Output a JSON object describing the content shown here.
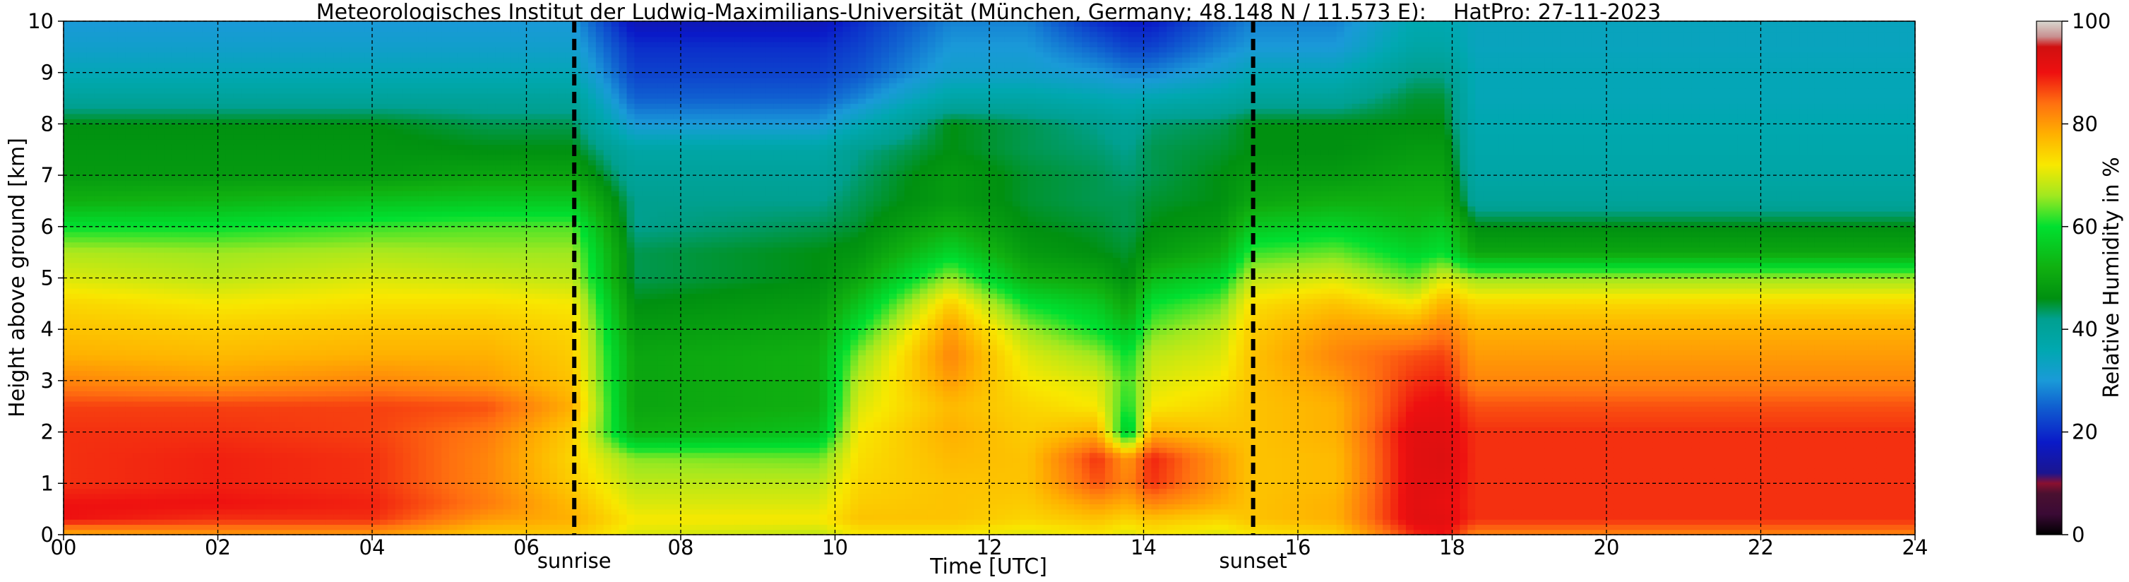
{
  "chart_data": {
    "type": "heatmap",
    "title": "Meteorologisches Institut der Ludwig-Maximilians-Universität (München, Germany; 48.148 N / 11.573 E):    HatPro: 27-11-2023",
    "xlabel": "Time [UTC]",
    "ylabel": "Height above ground [km]",
    "xlim": [
      0,
      24
    ],
    "ylim": [
      0,
      10
    ],
    "x_ticks": [
      "00",
      "02",
      "04",
      "06",
      "08",
      "10",
      "12",
      "14",
      "16",
      "18",
      "20",
      "22",
      "24"
    ],
    "y_ticks": [
      "0",
      "1",
      "2",
      "3",
      "4",
      "5",
      "6",
      "7",
      "8",
      "9",
      "10"
    ],
    "grid": true,
    "colorbar": {
      "label": "Relative Humidity in %",
      "range": [
        0,
        100
      ],
      "ticks": [
        "0",
        "20",
        "40",
        "60",
        "80",
        "100"
      ]
    },
    "annotations": [
      {
        "text": "sunrise",
        "x": 6.62
      },
      {
        "text": "sunset",
        "x": 15.42
      }
    ],
    "height_levels_km": [
      0.0,
      0.3,
      0.6,
      1.0,
      1.5,
      2.0,
      2.5,
      3.0,
      3.5,
      4.0,
      4.5,
      5.0,
      5.5,
      6.0,
      6.5,
      7.0,
      7.5,
      8.0,
      8.5,
      9.0,
      9.5,
      10.0
    ],
    "rh_profiles": [
      {
        "time": 0.0,
        "rh": [
          78,
          90,
          90,
          88,
          88,
          88,
          87,
          82,
          78,
          76,
          74,
          70,
          67,
          60,
          52,
          48,
          47,
          46,
          40,
          35,
          32,
          30
        ]
      },
      {
        "time": 2.0,
        "rh": [
          80,
          88,
          90,
          89,
          89,
          88,
          87,
          80,
          77,
          75,
          72,
          68,
          66,
          60,
          53,
          48,
          47,
          46,
          40,
          35,
          32,
          30
        ]
      },
      {
        "time": 4.0,
        "rh": [
          80,
          88,
          89,
          88,
          88,
          87,
          87,
          82,
          78,
          76,
          73,
          70,
          67,
          62,
          55,
          48,
          47,
          46,
          40,
          35,
          32,
          30
        ]
      },
      {
        "time": 5.5,
        "rh": [
          75,
          80,
          83,
          82,
          82,
          83,
          86,
          80,
          78,
          76,
          73,
          69,
          66,
          63,
          56,
          50,
          46,
          44,
          40,
          35,
          32,
          30
        ]
      },
      {
        "time": 6.6,
        "rh": [
          75,
          78,
          77,
          75,
          74,
          75,
          78,
          76,
          75,
          74,
          72,
          68,
          66,
          63,
          56,
          50,
          46,
          44,
          40,
          35,
          32,
          30
        ]
      },
      {
        "time": 7.4,
        "rh": [
          70,
          72,
          70,
          68,
          65,
          52,
          50,
          50,
          50,
          48,
          46,
          44,
          44,
          42,
          42,
          40,
          38,
          30,
          25,
          22,
          20,
          16
        ]
      },
      {
        "time": 9.8,
        "rh": [
          68,
          72,
          70,
          68,
          64,
          55,
          52,
          52,
          52,
          50,
          48,
          46,
          46,
          44,
          42,
          40,
          38,
          30,
          25,
          22,
          20,
          16
        ]
      },
      {
        "time": 10.3,
        "rh": [
          72,
          76,
          75,
          74,
          73,
          72,
          70,
          68,
          65,
          60,
          55,
          50,
          47,
          45,
          44,
          43,
          42,
          35,
          28,
          24,
          22,
          20
        ]
      },
      {
        "time": 11.5,
        "rh": [
          72,
          76,
          76,
          76,
          77,
          78,
          77,
          80,
          82,
          80,
          75,
          66,
          58,
          52,
          48,
          48,
          46,
          46,
          38,
          32,
          30,
          28
        ]
      },
      {
        "time": 12.5,
        "rh": [
          70,
          74,
          75,
          76,
          76,
          75,
          74,
          72,
          70,
          66,
          60,
          52,
          48,
          46,
          45,
          45,
          44,
          44,
          38,
          32,
          30,
          28
        ]
      },
      {
        "time": 13.4,
        "rh": [
          72,
          76,
          80,
          86,
          88,
          78,
          72,
          70,
          66,
          60,
          56,
          50,
          46,
          45,
          44,
          44,
          43,
          42,
          36,
          30,
          25,
          20
        ]
      },
      {
        "time": 13.8,
        "rh": [
          70,
          74,
          78,
          82,
          80,
          55,
          60,
          62,
          60,
          55,
          50,
          46,
          45,
          44,
          44,
          43,
          42,
          40,
          35,
          28,
          22,
          18
        ]
      },
      {
        "time": 14.1,
        "rh": [
          72,
          76,
          82,
          88,
          89,
          78,
          72,
          70,
          68,
          64,
          60,
          54,
          48,
          46,
          45,
          44,
          44,
          43,
          36,
          28,
          22,
          18
        ]
      },
      {
        "time": 15.0,
        "rh": [
          70,
          74,
          78,
          80,
          80,
          76,
          74,
          72,
          70,
          68,
          64,
          58,
          52,
          48,
          46,
          46,
          45,
          44,
          38,
          32,
          28,
          25
        ]
      },
      {
        "time": 15.4,
        "rh": [
          72,
          76,
          76,
          76,
          76,
          76,
          76,
          76,
          76,
          75,
          73,
          68,
          62,
          56,
          50,
          48,
          46,
          46,
          40,
          35,
          30,
          28
        ]
      },
      {
        "time": 16.5,
        "rh": [
          74,
          78,
          78,
          77,
          77,
          78,
          78,
          80,
          82,
          80,
          76,
          70,
          64,
          58,
          52,
          48,
          46,
          46,
          40,
          35,
          30,
          28
        ]
      },
      {
        "time": 17.5,
        "rh": [
          88,
          92,
          92,
          92,
          92,
          92,
          90,
          88,
          86,
          80,
          72,
          64,
          58,
          54,
          52,
          50,
          48,
          46,
          45,
          42,
          38,
          36
        ]
      },
      {
        "time": 17.9,
        "rh": [
          90,
          92,
          91,
          92,
          93,
          92,
          91,
          89,
          87,
          83,
          78,
          70,
          60,
          56,
          52,
          50,
          48,
          46,
          45,
          42,
          38,
          36
        ]
      },
      {
        "time": 18.3,
        "rh": [
          82,
          88,
          88,
          88,
          88,
          88,
          86,
          82,
          80,
          78,
          74,
          66,
          50,
          46,
          40,
          38,
          37,
          36,
          35,
          35,
          34,
          34
        ]
      },
      {
        "time": 24.0,
        "rh": [
          82,
          88,
          88,
          88,
          88,
          88,
          86,
          82,
          80,
          78,
          74,
          66,
          50,
          46,
          40,
          38,
          37,
          36,
          35,
          35,
          34,
          34
        ]
      }
    ]
  }
}
